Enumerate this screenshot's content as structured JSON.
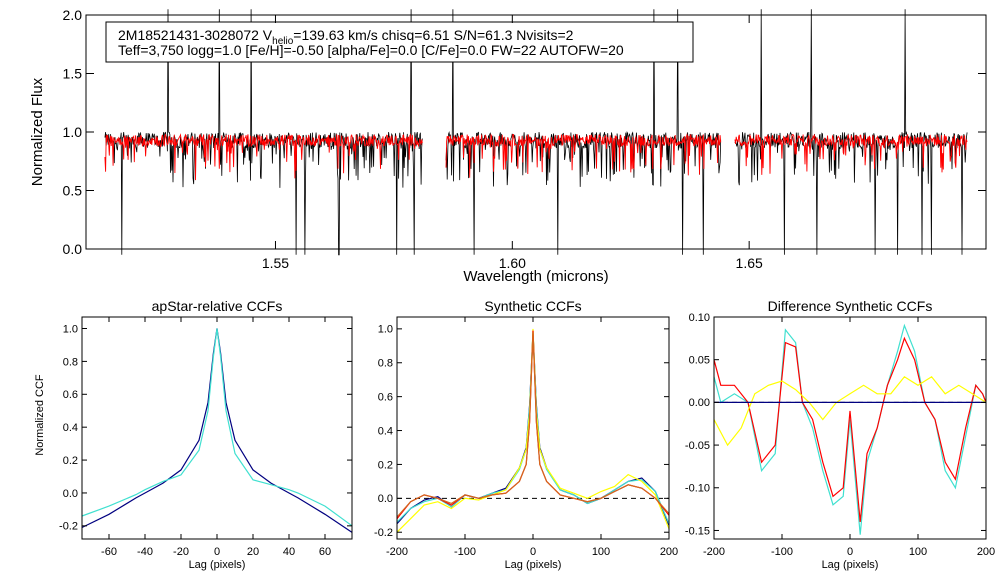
{
  "chart_data": [
    {
      "type": "line",
      "id": "spectrum",
      "info_line1_prefix": "2M18521431-3028072  V",
      "info_line1_sub": "helio",
      "info_line1_suffix": "=139.63 km/s  chisq=6.51  S/N=61.3  Nvisits=2",
      "info_line2": "Teff=3,750 logg=1.0 [Fe/H]=-0.50 [alpha/Fe]=0.0 [C/Fe]=0.0 FW=22 AUTOFW=20",
      "xlabel": "Wavelength (microns)",
      "ylabel": "Normalized Flux",
      "xlim": [
        1.51,
        1.7
      ],
      "ylim": [
        0.0,
        2.0
      ],
      "xticks": [
        1.55,
        1.6,
        1.65
      ],
      "xtick_labels": [
        "1.55",
        "1.60",
        "1.65"
      ],
      "yticks": [
        0.0,
        0.5,
        1.0,
        1.5,
        2.0
      ],
      "ytick_labels": [
        "0.0",
        "0.5",
        "1.0",
        "1.5",
        "2.0"
      ],
      "chip_ranges": [
        [
          1.514,
          1.581
        ],
        [
          1.586,
          1.644
        ],
        [
          1.647,
          1.696
        ]
      ],
      "continuum": 0.93,
      "series": [
        {
          "name": "observed",
          "color": "#000000"
        },
        {
          "name": "synthetic",
          "color": "#ff0000"
        }
      ]
    },
    {
      "type": "line",
      "id": "apstar-ccf",
      "title": "apStar-relative CCFs",
      "xlabel": "Lag (pixels)",
      "ylabel": "Normalized CCF",
      "xlim": [
        -75,
        75
      ],
      "ylim": [
        -0.28,
        1.07
      ],
      "xticks": [
        -60,
        -40,
        -20,
        0,
        20,
        40,
        60
      ],
      "xtick_labels": [
        "-60",
        "-40",
        "-20",
        "0",
        "20",
        "40",
        "60"
      ],
      "yticks": [
        -0.2,
        0.0,
        0.2,
        0.4,
        0.6,
        0.8,
        1.0
      ],
      "ytick_labels": [
        "-0.2",
        "0.0",
        "0.2",
        "0.4",
        "0.6",
        "0.8",
        "1.0"
      ],
      "series": [
        {
          "name": "ccf-visit-1",
          "color": "#000080",
          "x": [
            -75,
            -60,
            -45,
            -40,
            -30,
            -20,
            -10,
            -5,
            -2,
            0,
            2,
            5,
            10,
            20,
            30,
            40,
            45,
            60,
            75
          ],
          "y": [
            -0.21,
            -0.13,
            -0.03,
            0.0,
            0.06,
            0.14,
            0.32,
            0.55,
            0.85,
            1.0,
            0.85,
            0.55,
            0.32,
            0.14,
            0.06,
            0.0,
            -0.03,
            -0.13,
            -0.24
          ]
        },
        {
          "name": "ccf-visit-2",
          "color": "#40e0d0",
          "x": [
            -75,
            -60,
            -45,
            -40,
            -30,
            -20,
            -10,
            -5,
            -2,
            0,
            2,
            5,
            10,
            20,
            30,
            40,
            45,
            60,
            75
          ],
          "y": [
            -0.14,
            -0.08,
            -0.01,
            0.02,
            0.07,
            0.11,
            0.26,
            0.5,
            0.83,
            1.0,
            0.83,
            0.5,
            0.24,
            0.08,
            0.05,
            0.02,
            0.0,
            -0.08,
            -0.2
          ]
        }
      ]
    },
    {
      "type": "line",
      "id": "synthetic-ccf",
      "title": "Synthetic CCFs",
      "xlabel": "Lag (pixels)",
      "xlim": [
        -200,
        200
      ],
      "ylim": [
        -0.24,
        1.07
      ],
      "xticks": [
        -200,
        -100,
        0,
        100,
        200
      ],
      "xtick_labels": [
        "-200",
        "-100",
        "0",
        "100",
        "200"
      ],
      "yticks": [
        -0.2,
        0.0,
        0.2,
        0.4,
        0.6,
        0.8,
        1.0
      ],
      "ytick_labels": [
        "-0.2",
        "0.0",
        "0.2",
        "0.4",
        "0.6",
        "0.8",
        "1.0"
      ],
      "reference_line": 0.0,
      "series": [
        {
          "name": "synthetic-1",
          "color": "#000080",
          "x": [
            -200,
            -180,
            -160,
            -140,
            -120,
            -100,
            -80,
            -60,
            -40,
            -20,
            -10,
            -5,
            0,
            5,
            10,
            20,
            40,
            60,
            80,
            100,
            120,
            140,
            160,
            180,
            200
          ],
          "y": [
            -0.15,
            -0.06,
            -0.01,
            0.01,
            -0.05,
            0.02,
            0.0,
            0.03,
            0.06,
            0.18,
            0.3,
            0.55,
            0.98,
            0.55,
            0.3,
            0.18,
            0.05,
            0.02,
            -0.03,
            0.0,
            0.05,
            0.1,
            0.12,
            0.04,
            -0.16
          ]
        },
        {
          "name": "synthetic-2",
          "color": "#40e0d0",
          "x": [
            -200,
            -180,
            -160,
            -140,
            -120,
            -100,
            -80,
            -60,
            -40,
            -20,
            -10,
            -5,
            0,
            5,
            10,
            20,
            40,
            60,
            80,
            100,
            120,
            140,
            160,
            180,
            200
          ],
          "y": [
            -0.14,
            -0.06,
            -0.02,
            0.0,
            -0.05,
            0.02,
            0.0,
            0.03,
            0.05,
            0.17,
            0.29,
            0.54,
            0.98,
            0.54,
            0.29,
            0.17,
            0.05,
            0.02,
            -0.03,
            0.0,
            0.05,
            0.1,
            0.11,
            0.04,
            -0.15
          ]
        },
        {
          "name": "synthetic-3",
          "color": "#ffff00",
          "x": [
            -200,
            -180,
            -160,
            -140,
            -120,
            -100,
            -80,
            -60,
            -40,
            -20,
            -10,
            -5,
            0,
            5,
            10,
            20,
            40,
            60,
            80,
            100,
            120,
            140,
            160,
            180,
            200
          ],
          "y": [
            -0.2,
            -0.12,
            -0.04,
            -0.02,
            -0.06,
            0.0,
            -0.01,
            0.02,
            0.05,
            0.18,
            0.29,
            0.5,
            1.0,
            0.5,
            0.29,
            0.18,
            0.06,
            0.03,
            0.0,
            0.04,
            0.07,
            0.14,
            0.1,
            0.02,
            -0.18
          ]
        },
        {
          "name": "synthetic-4",
          "color": "#ff0000",
          "x": [
            -200,
            -180,
            -160,
            -140,
            -120,
            -100,
            -80,
            -60,
            -40,
            -20,
            -10,
            -5,
            0,
            5,
            10,
            20,
            40,
            60,
            80,
            100,
            120,
            140,
            160,
            180,
            200
          ],
          "y": [
            -0.12,
            -0.02,
            0.02,
            0.0,
            -0.04,
            0.02,
            0.0,
            0.02,
            0.03,
            0.1,
            0.2,
            0.45,
            0.99,
            0.45,
            0.2,
            0.1,
            0.02,
            0.0,
            -0.02,
            0.0,
            0.04,
            0.08,
            0.06,
            0.0,
            -0.1
          ]
        },
        {
          "name": "synthetic-5",
          "color": "#d2691e",
          "x": [
            -200,
            -180,
            -160,
            -140,
            -120,
            -100,
            -80,
            -60,
            -40,
            -20,
            -10,
            -5,
            0,
            5,
            10,
            20,
            40,
            60,
            80,
            100,
            120,
            140,
            160,
            180,
            200
          ],
          "y": [
            -0.11,
            -0.02,
            0.02,
            0.0,
            -0.03,
            0.02,
            0.0,
            0.02,
            0.03,
            0.1,
            0.2,
            0.45,
            0.98,
            0.45,
            0.2,
            0.1,
            0.02,
            0.0,
            -0.02,
            0.0,
            0.04,
            0.08,
            0.06,
            0.0,
            -0.09
          ]
        }
      ]
    },
    {
      "type": "line",
      "id": "difference-ccf",
      "title": "Difference Synthetic CCFs",
      "xlabel": "Lag (pixels)",
      "xlim": [
        -200,
        200
      ],
      "ylim": [
        -0.16,
        0.1
      ],
      "xticks": [
        -200,
        -100,
        0,
        100,
        200
      ],
      "xtick_labels": [
        "-200",
        "-100",
        "0",
        "100",
        "200"
      ],
      "yticks": [
        -0.15,
        -0.1,
        -0.05,
        0.0,
        0.05,
        0.1
      ],
      "ytick_labels": [
        "-0.15",
        "-0.10",
        "-0.05",
        "0.00",
        "0.05",
        "0.10"
      ],
      "reference_line": 0.0,
      "series": [
        {
          "name": "difference-1",
          "color": "#40e0d0",
          "x": [
            -200,
            -190,
            -170,
            -150,
            -130,
            -110,
            -95,
            -80,
            -70,
            -55,
            -40,
            -25,
            -10,
            0,
            15,
            25,
            40,
            55,
            70,
            80,
            95,
            110,
            125,
            140,
            155,
            170,
            185,
            195,
            200
          ],
          "y": [
            0.03,
            0.0,
            0.01,
            0.0,
            -0.08,
            -0.06,
            0.085,
            0.07,
            0.0,
            -0.03,
            -0.08,
            -0.12,
            -0.11,
            -0.02,
            -0.155,
            -0.07,
            -0.03,
            0.02,
            0.06,
            0.09,
            0.06,
            0.0,
            -0.02,
            -0.08,
            -0.1,
            -0.04,
            0.02,
            0.01,
            0.0
          ]
        },
        {
          "name": "difference-2",
          "color": "#ff0000",
          "x": [
            -200,
            -190,
            -170,
            -150,
            -130,
            -110,
            -95,
            -80,
            -70,
            -55,
            -40,
            -25,
            -10,
            0,
            15,
            25,
            40,
            55,
            70,
            80,
            95,
            110,
            125,
            140,
            155,
            170,
            185,
            195,
            200
          ],
          "y": [
            0.05,
            0.02,
            0.02,
            0.0,
            -0.07,
            -0.05,
            0.07,
            0.065,
            0.0,
            -0.02,
            -0.07,
            -0.11,
            -0.1,
            -0.01,
            -0.14,
            -0.06,
            -0.03,
            0.02,
            0.05,
            0.075,
            0.05,
            0.0,
            -0.02,
            -0.07,
            -0.09,
            -0.03,
            0.02,
            0.01,
            0.0
          ]
        },
        {
          "name": "difference-3",
          "color": "#ffff00",
          "x": [
            -200,
            -180,
            -160,
            -140,
            -120,
            -100,
            -80,
            -60,
            -40,
            -20,
            0,
            20,
            40,
            60,
            80,
            100,
            120,
            140,
            160,
            180,
            200
          ],
          "y": [
            -0.02,
            -0.05,
            -0.03,
            0.01,
            0.02,
            0.025,
            0.015,
            0.0,
            -0.02,
            0.0,
            0.01,
            0.02,
            0.01,
            0.01,
            0.03,
            0.02,
            0.03,
            0.01,
            0.02,
            0.01,
            0.0
          ]
        },
        {
          "name": "difference-4",
          "color": "#000080",
          "x": [
            -200,
            200
          ],
          "y": [
            0.0,
            0.0
          ]
        }
      ]
    }
  ]
}
